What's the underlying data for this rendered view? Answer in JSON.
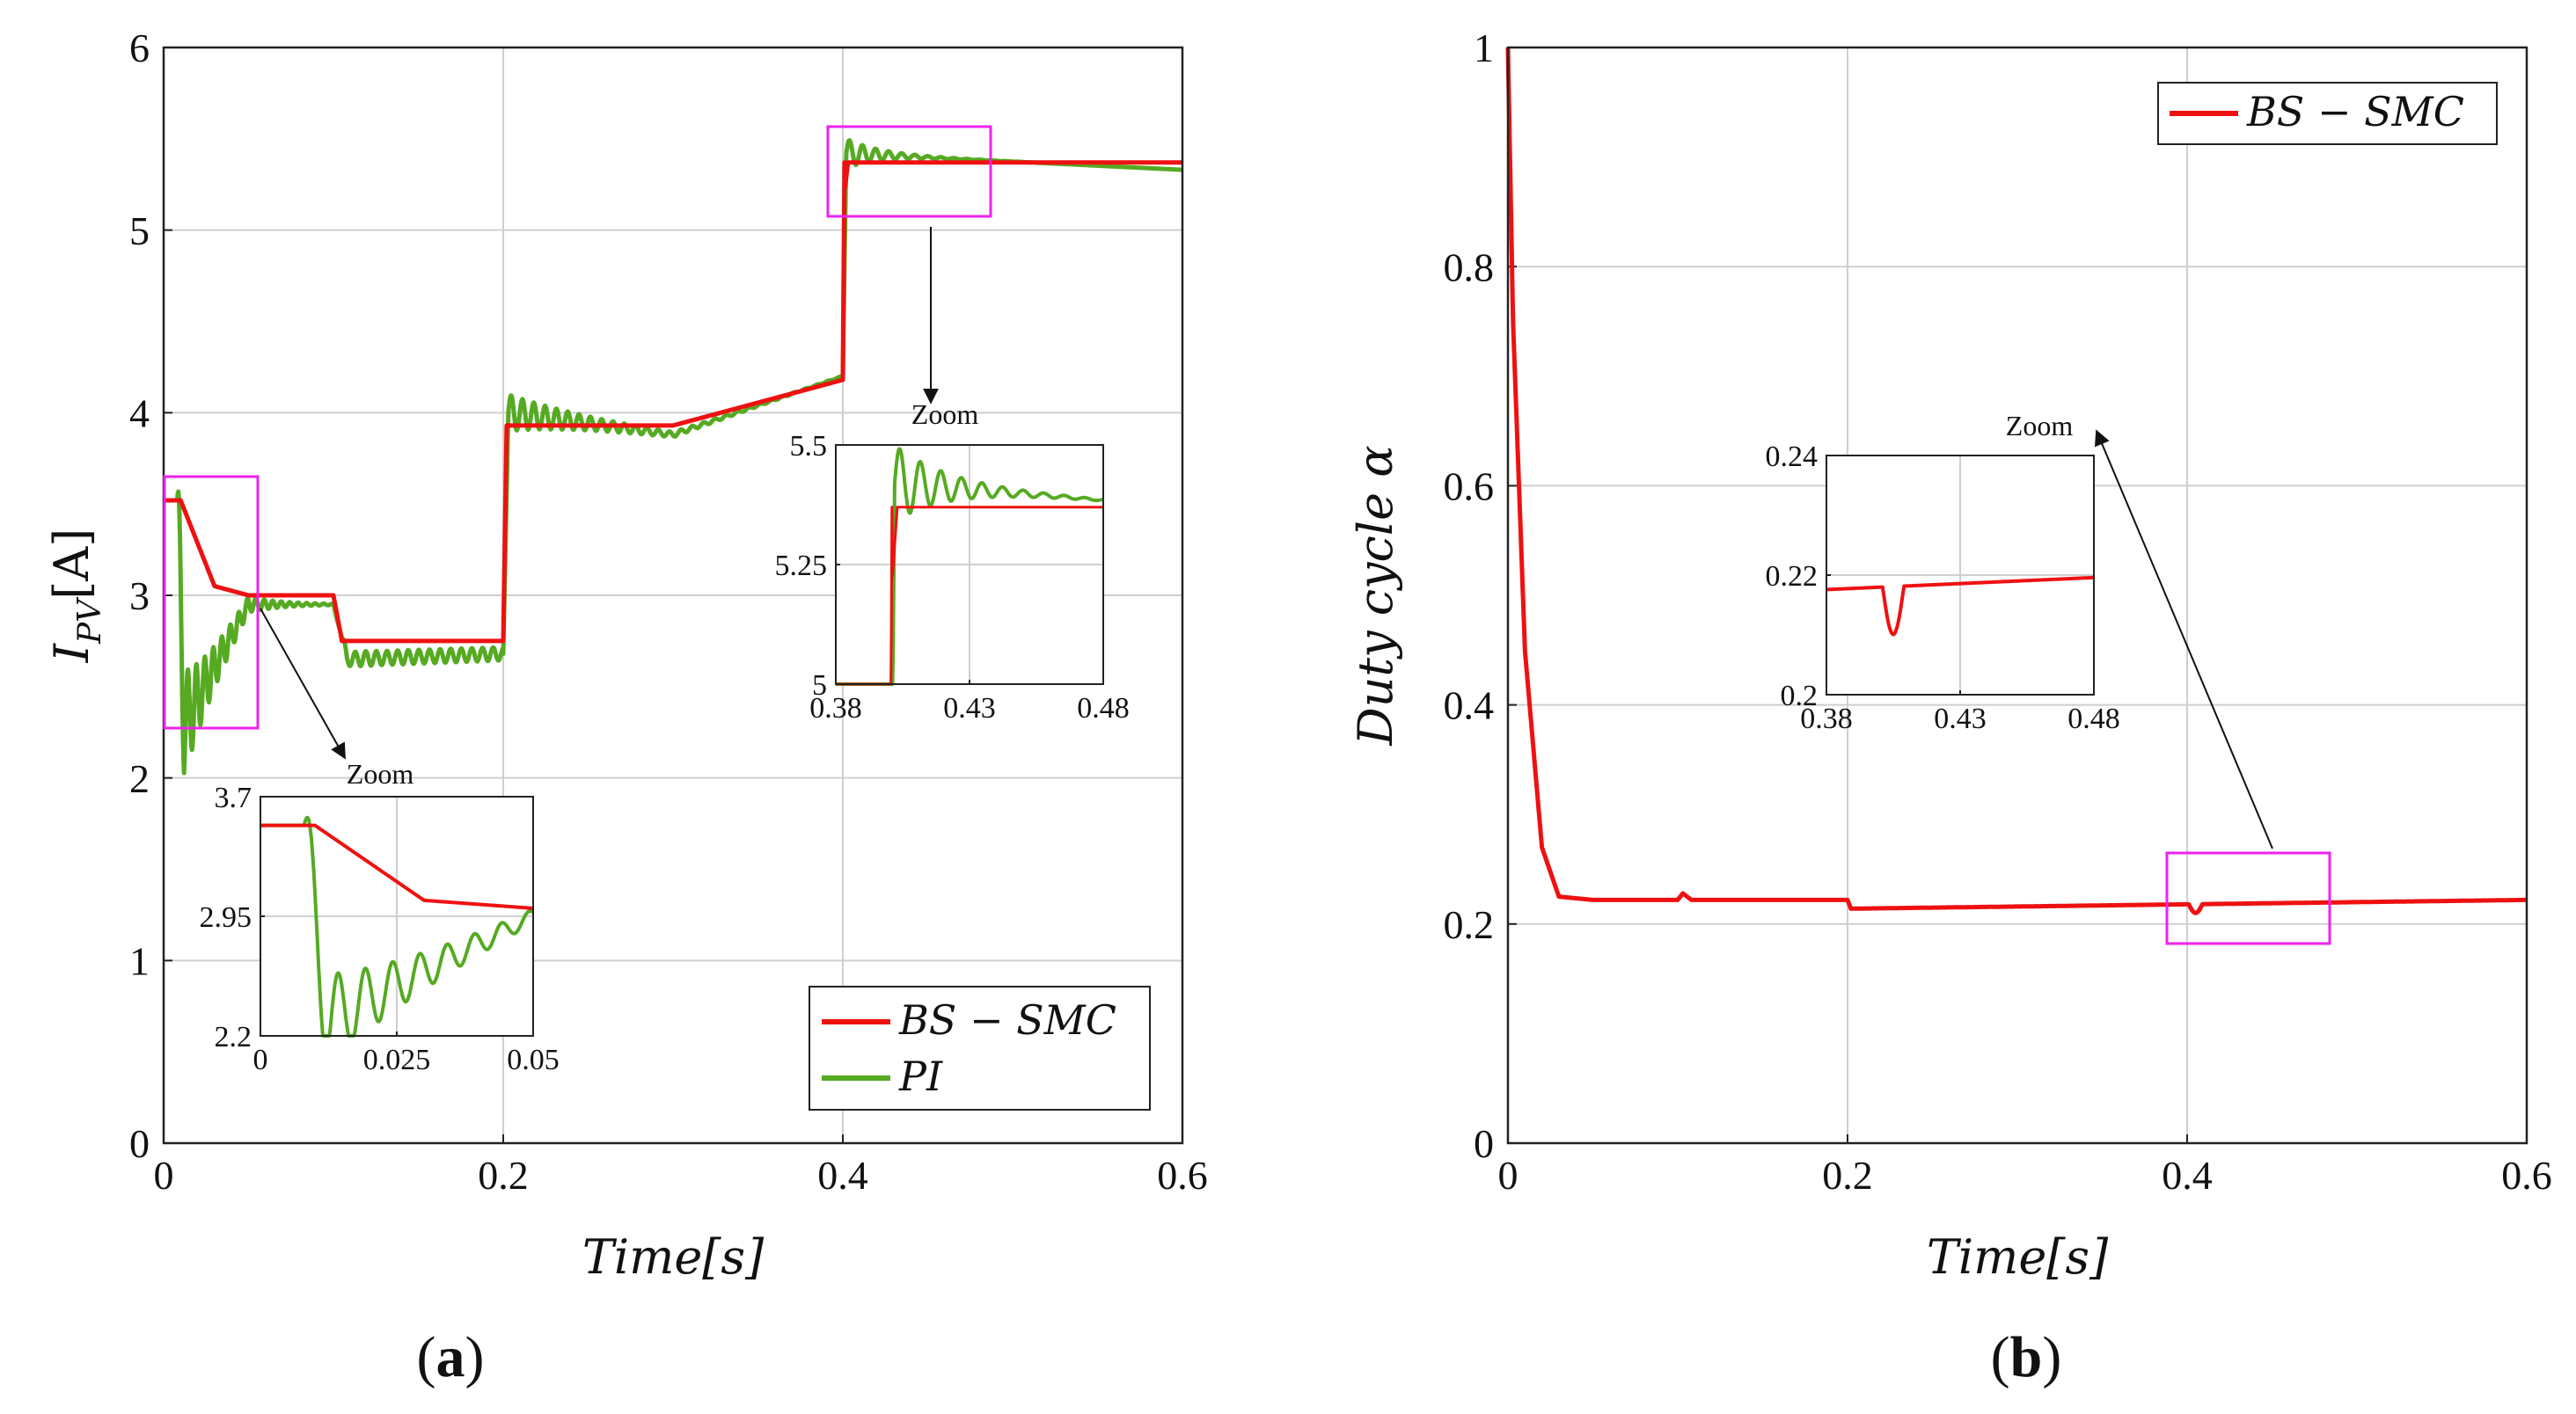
{
  "chart_data": [
    {
      "id": "a",
      "type": "line",
      "panel_label": "(a)",
      "panel_letter": "a",
      "xlabel": "Time[s]",
      "ylabel": "I_PV[A]",
      "ylabel_main": "I",
      "ylabel_sub": "PV",
      "ylabel_unit": "[A]",
      "xlim": [
        0,
        0.6
      ],
      "ylim": [
        0,
        6
      ],
      "xticks": [
        "0",
        "0.2",
        "0.4",
        "0.6"
      ],
      "yticks": [
        "0",
        "1",
        "2",
        "3",
        "4",
        "5",
        "6"
      ],
      "grid": true,
      "legend_position": "bottom-right",
      "series": [
        {
          "name": "BS − SMC",
          "color": "#ee1111",
          "x": [
            0,
            0.01,
            0.03,
            0.05,
            0.1,
            0.105,
            0.2,
            0.202,
            0.3,
            0.4,
            0.401,
            0.6
          ],
          "y": [
            3.52,
            3.52,
            3.05,
            3.0,
            3.0,
            2.75,
            2.75,
            3.93,
            3.93,
            4.18,
            5.37,
            5.37
          ]
        },
        {
          "name": "PI",
          "color": "#55aa22",
          "x": [
            0,
            0.008,
            0.012,
            0.05,
            0.1,
            0.108,
            0.2,
            0.203,
            0.3,
            0.4,
            0.402,
            0.6
          ],
          "y": [
            3.52,
            3.52,
            2.3,
            2.95,
            2.95,
            2.65,
            2.68,
            4.0,
            3.88,
            4.2,
            5.42,
            5.33
          ]
        }
      ],
      "insets": [
        {
          "label": "Zoom",
          "xlim": [
            0,
            0.05
          ],
          "ylim": [
            2.2,
            3.7
          ],
          "xticks": [
            "0",
            "0.025",
            "0.05"
          ],
          "yticks": [
            "2.2",
            "2.95",
            "3.7"
          ]
        },
        {
          "label": "Zoom",
          "xlim": [
            0.38,
            0.48
          ],
          "ylim": [
            5,
            5.5
          ],
          "xticks": [
            "0.38",
            "0.43",
            "0.48"
          ],
          "yticks": [
            "5",
            "5.25",
            "5.5"
          ]
        }
      ]
    },
    {
      "id": "b",
      "type": "line",
      "panel_label": "(b)",
      "panel_letter": "b",
      "xlabel": "Time[s]",
      "ylabel": "Duty cycle α",
      "xlim": [
        0,
        0.6
      ],
      "ylim": [
        0,
        1
      ],
      "xticks": [
        "0",
        "0.2",
        "0.4",
        "0.6"
      ],
      "yticks": [
        "0",
        "0.2",
        "0.4",
        "0.6",
        "0.8",
        "1"
      ],
      "grid": true,
      "legend_position": "top-right",
      "series": [
        {
          "name": "BS − SMC",
          "color": "#ee1111",
          "x": [
            0,
            0.003,
            0.01,
            0.02,
            0.03,
            0.05,
            0.1,
            0.103,
            0.108,
            0.2,
            0.202,
            0.6
          ],
          "y": [
            1.0,
            0.75,
            0.45,
            0.27,
            0.225,
            0.222,
            0.222,
            0.228,
            0.222,
            0.222,
            0.214,
            0.222
          ]
        }
      ],
      "insets": [
        {
          "label": "Zoom",
          "xlim": [
            0.38,
            0.48
          ],
          "ylim": [
            0.2,
            0.24
          ],
          "xticks": [
            "0.38",
            "0.43",
            "0.48"
          ],
          "yticks": [
            "0.2",
            "0.22",
            "0.24"
          ]
        }
      ]
    }
  ]
}
